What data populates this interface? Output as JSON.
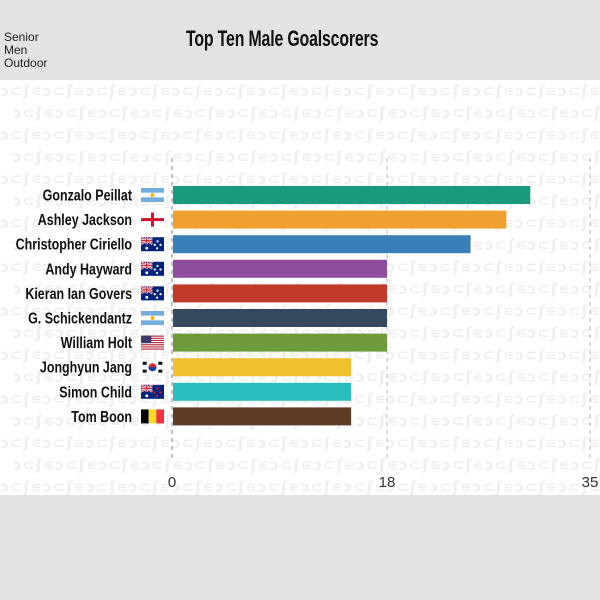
{
  "category_lines": [
    "Senior",
    "Men",
    "Outdoor"
  ],
  "chart_data": {
    "type": "bar",
    "orientation": "horizontal",
    "title": "Top Ten Male Goalscorers",
    "categories": [
      "Gonzalo Peillat",
      "Ashley Jackson",
      "Christopher Ciriello",
      "Andy Hayward",
      "Kieran Ian Govers",
      "G. Schickendantz",
      "William Holt",
      "Jonghyun Jang",
      "Simon Child",
      "Tom Boon"
    ],
    "values": [
      30,
      28,
      25,
      18,
      18,
      18,
      18,
      15,
      15,
      15
    ],
    "countries": [
      "argentina",
      "england",
      "australia",
      "australia",
      "australia",
      "argentina",
      "usa",
      "south-korea",
      "new-zealand",
      "belgium"
    ],
    "colors": [
      "#1a9a7d",
      "#f0a030",
      "#3a80b8",
      "#8e4e9e",
      "#c0392b",
      "#34495e",
      "#6f9a3a",
      "#f0c030",
      "#29bdbd",
      "#5b3d25"
    ],
    "xlim": [
      0,
      35
    ],
    "xticks": [
      0,
      18,
      35
    ],
    "grid": true
  }
}
